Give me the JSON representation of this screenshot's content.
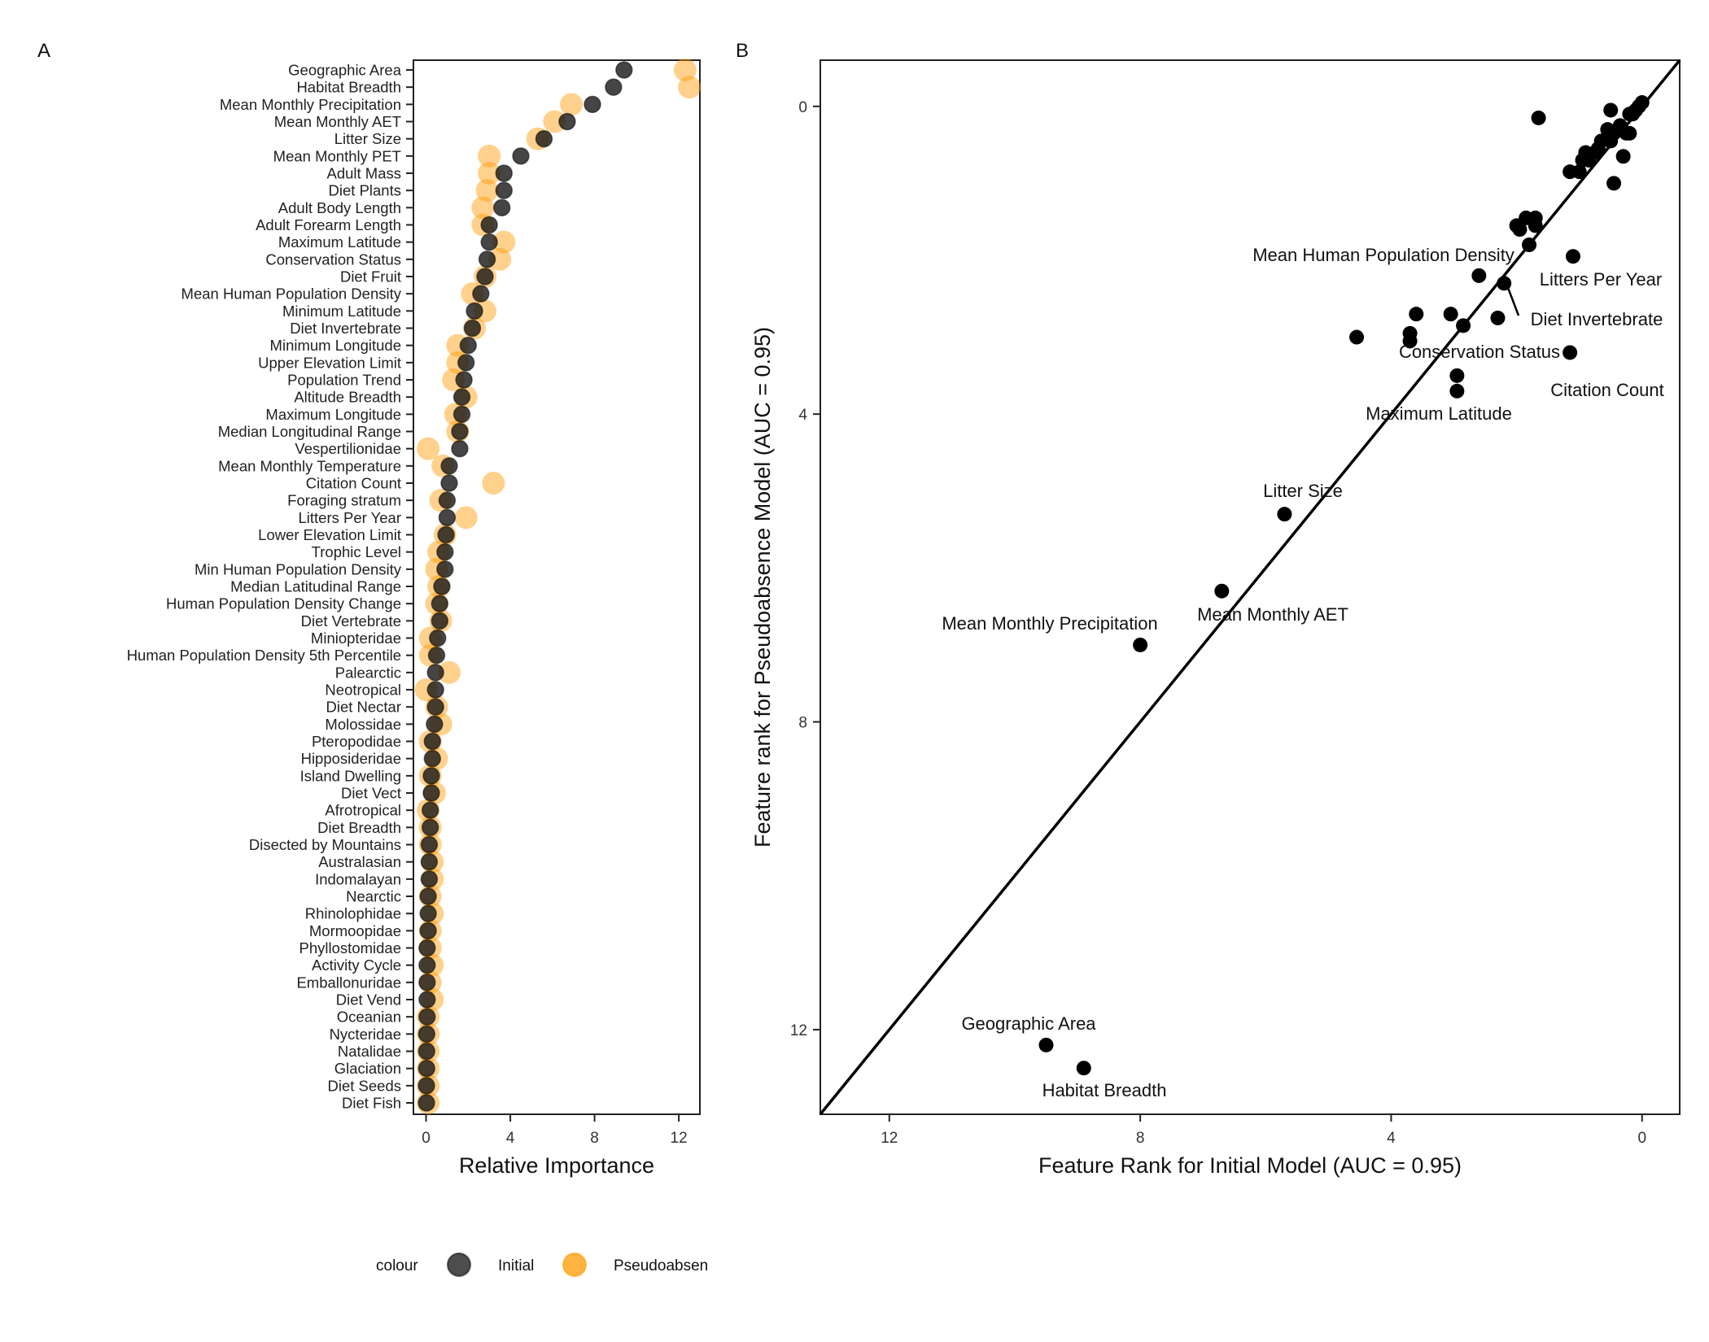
{
  "chart_data": [
    {
      "panel_label": "A",
      "type": "scatter",
      "orientation": "horizontal",
      "xlabel": "Relative Importance",
      "xlim": [
        -0.6,
        13.0
      ],
      "xticks": [
        0,
        4,
        8,
        12
      ],
      "grid": false,
      "legend": {
        "placement": "bottom",
        "title": "colour",
        "entries": [
          {
            "name": "Initial",
            "color": "#111111",
            "opacity": 0.75
          },
          {
            "name": "Pseudoabsen",
            "color": "#ff9900",
            "opacity": 0.45
          }
        ]
      },
      "categories": [
        "Geographic Area",
        "Habitat Breadth",
        "Mean Monthly Precipitation",
        "Mean Monthly AET",
        "Litter Size",
        "Mean Monthly PET",
        "Adult Mass",
        "Diet Plants",
        "Adult Body Length",
        "Adult Forearm Length",
        "Maximum Latitude",
        "Conservation Status",
        "Diet Fruit",
        "Mean Human Population Density",
        "Minimum Latitude",
        "Diet Invertebrate",
        "Minimum Longitude",
        "Upper Elevation Limit",
        "Population Trend",
        "Altitude Breadth",
        "Maximum Longitude",
        "Median Longitudinal Range",
        "Vespertilionidae",
        "Mean Monthly Temperature",
        "Citation Count",
        "Foraging stratum",
        "Litters Per Year",
        "Lower Elevation Limit",
        "Trophic Level",
        "Min Human Population Density",
        "Median Latitudinal Range",
        "Human Population Density Change",
        "Diet Vertebrate",
        "Miniopteridae",
        "Human Population Density 5th Percentile",
        "Palearctic",
        "Neotropical",
        "Diet Nectar",
        "Molossidae",
        "Pteropodidae",
        "Hipposideridae",
        "Island Dwelling",
        "Diet Vect",
        "Afrotropical",
        "Diet Breadth",
        "Disected by Mountains",
        "Australasian",
        "Indomalayan",
        "Nearctic",
        "Rhinolophidae",
        "Mormoopidae",
        "Phyllostomidae",
        "Activity Cycle",
        "Emballonuridae",
        "Diet Vend",
        "Oceanian",
        "Nycteridae",
        "Natalidae",
        "Glaciation",
        "Diet Seeds",
        "Diet Fish"
      ],
      "series": [
        {
          "name": "Initial",
          "values": [
            9.4,
            8.9,
            7.9,
            6.7,
            5.6,
            4.5,
            3.7,
            3.7,
            3.6,
            3.0,
            3.0,
            2.9,
            2.8,
            2.6,
            2.3,
            2.2,
            2.0,
            1.9,
            1.8,
            1.7,
            1.7,
            1.6,
            1.6,
            1.1,
            1.1,
            1.0,
            1.0,
            0.95,
            0.9,
            0.9,
            0.75,
            0.65,
            0.65,
            0.55,
            0.5,
            0.45,
            0.45,
            0.45,
            0.4,
            0.3,
            0.3,
            0.25,
            0.25,
            0.2,
            0.2,
            0.15,
            0.15,
            0.15,
            0.1,
            0.1,
            0.1,
            0.05,
            0.05,
            0.05,
            0.05,
            0.05,
            0.03,
            0.03,
            0.03,
            0.02,
            0.02
          ]
        },
        {
          "name": "Pseudoabsen",
          "values": [
            12.3,
            12.5,
            6.9,
            6.1,
            5.3,
            3.0,
            3.0,
            2.9,
            2.7,
            2.7,
            3.7,
            3.5,
            2.8,
            2.2,
            2.8,
            2.3,
            1.5,
            1.5,
            1.3,
            1.9,
            1.4,
            1.5,
            0.1,
            0.8,
            3.2,
            0.7,
            1.9,
            0.9,
            0.6,
            0.5,
            0.6,
            0.5,
            0.7,
            0.2,
            0.2,
            1.1,
            0.0,
            0.5,
            0.7,
            0.2,
            0.5,
            0.2,
            0.4,
            0.1,
            0.2,
            0.2,
            0.3,
            0.3,
            0.2,
            0.3,
            0.2,
            0.2,
            0.3,
            0.2,
            0.3,
            0.1,
            0.1,
            0.1,
            0.1,
            0.1,
            0.1
          ]
        }
      ]
    },
    {
      "panel_label": "B",
      "type": "scatter",
      "xlabel": "Feature Rank for Initial Model (AUC = 0.95)",
      "ylabel": "Feature rank for Pseudoabsence Model (AUC = 0.95)",
      "xlim": [
        13.1,
        -0.6
      ],
      "ylim": [
        13.1,
        -0.6
      ],
      "xticks": [
        12,
        8,
        4,
        0
      ],
      "yticks": [
        0,
        4,
        8,
        12
      ],
      "axes_reversed": true,
      "reference_line": "y = x",
      "grid": false,
      "points": [
        {
          "x": 9.5,
          "y": 12.2
        },
        {
          "x": 8.9,
          "y": 12.5
        },
        {
          "x": 8.0,
          "y": 7.0
        },
        {
          "x": 6.7,
          "y": 6.3
        },
        {
          "x": 5.7,
          "y": 5.3
        },
        {
          "x": 4.55,
          "y": 3.0
        },
        {
          "x": 3.7,
          "y": 2.95
        },
        {
          "x": 3.7,
          "y": 3.05
        },
        {
          "x": 3.6,
          "y": 2.7
        },
        {
          "x": 3.05,
          "y": 2.7
        },
        {
          "x": 2.95,
          "y": 3.5
        },
        {
          "x": 2.95,
          "y": 3.7
        },
        {
          "x": 2.85,
          "y": 2.85
        },
        {
          "x": 2.6,
          "y": 2.2
        },
        {
          "x": 2.3,
          "y": 2.75
        },
        {
          "x": 2.2,
          "y": 2.3
        },
        {
          "x": 2.0,
          "y": 1.55
        },
        {
          "x": 1.95,
          "y": 1.6
        },
        {
          "x": 1.85,
          "y": 1.45
        },
        {
          "x": 1.8,
          "y": 1.8
        },
        {
          "x": 1.7,
          "y": 1.45
        },
        {
          "x": 1.7,
          "y": 1.55
        },
        {
          "x": 1.65,
          "y": 0.15
        },
        {
          "x": 1.1,
          "y": 1.95
        },
        {
          "x": 1.15,
          "y": 3.2
        },
        {
          "x": 1.15,
          "y": 0.85
        },
        {
          "x": 1.0,
          "y": 0.85
        },
        {
          "x": 0.95,
          "y": 0.7
        },
        {
          "x": 0.9,
          "y": 0.6
        },
        {
          "x": 0.85,
          "y": 0.7
        },
        {
          "x": 0.75,
          "y": 0.6
        },
        {
          "x": 0.7,
          "y": 0.55
        },
        {
          "x": 0.65,
          "y": 0.45
        },
        {
          "x": 0.55,
          "y": 0.3
        },
        {
          "x": 0.5,
          "y": 0.05
        },
        {
          "x": 0.5,
          "y": 0.45
        },
        {
          "x": 0.45,
          "y": 0.35
        },
        {
          "x": 0.45,
          "y": 1.0
        },
        {
          "x": 0.35,
          "y": 0.25
        },
        {
          "x": 0.3,
          "y": 0.65
        },
        {
          "x": 0.25,
          "y": 0.35
        },
        {
          "x": 0.2,
          "y": 0.1
        },
        {
          "x": 0.2,
          "y": 0.35
        },
        {
          "x": 0.15,
          "y": 0.1
        },
        {
          "x": 0.1,
          "y": 0.05
        },
        {
          "x": 0.05,
          "y": 0.0
        },
        {
          "x": 0.0,
          "y": -0.05
        }
      ],
      "annotations": [
        {
          "text": "Geographic Area"
        },
        {
          "text": "Habitat Breadth"
        },
        {
          "text": "Mean Monthly Precipitation"
        },
        {
          "text": "Mean Monthly AET"
        },
        {
          "text": "Litter Size"
        },
        {
          "text": "Maximum Latitude"
        },
        {
          "text": "Conservation Status"
        },
        {
          "text": "Citation Count"
        },
        {
          "text": "Diet Invertebrate"
        },
        {
          "text": "Litters Per Year"
        },
        {
          "text": "Mean Human Population Density"
        }
      ]
    }
  ]
}
